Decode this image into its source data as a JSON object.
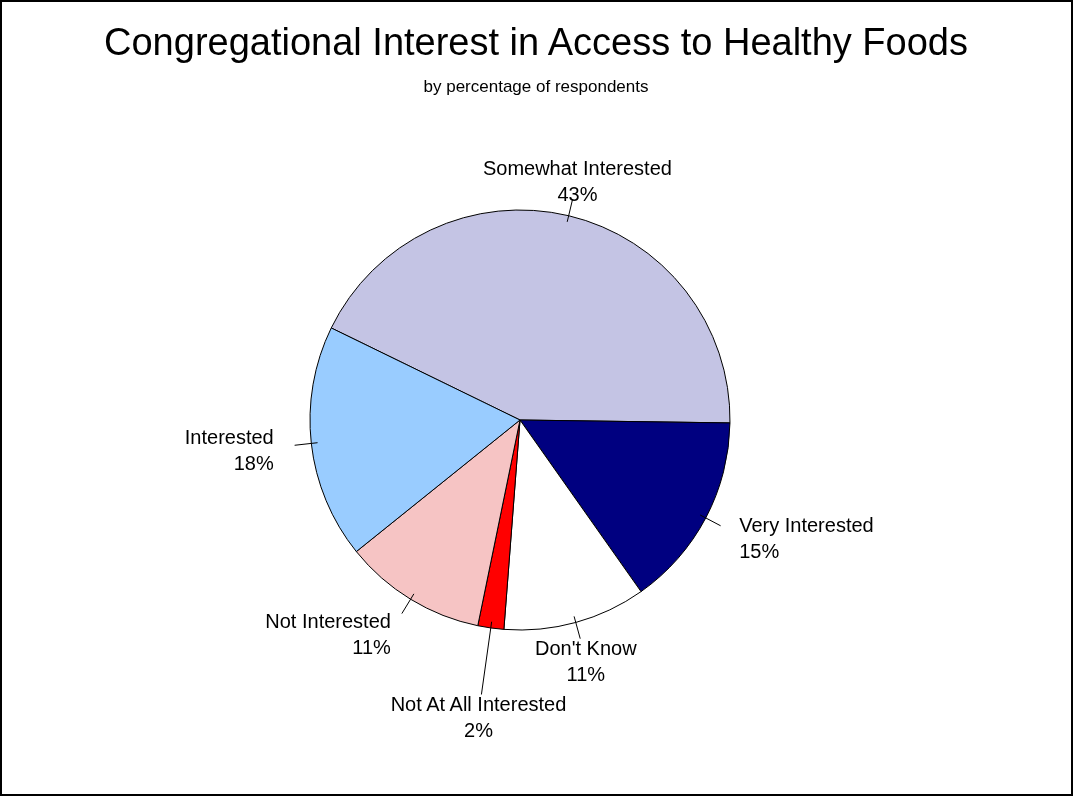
{
  "chart_data": {
    "type": "pie",
    "title": "Congregational Interest in Access to Healthy Foods",
    "subtitle": "by percentage of respondents",
    "categories": [
      "Somewhat Interested",
      "Very Interested",
      "Don't Know",
      "Not At All Interested",
      "Not Interested",
      "Interested"
    ],
    "values": [
      43,
      15,
      11,
      2,
      11,
      18
    ],
    "colors": [
      "#c4c4e4",
      "#000080",
      "#ffffff",
      "#ff0000",
      "#f6c4c4",
      "#99ccff"
    ],
    "value_labels": [
      "43%",
      "15%",
      "11%",
      "2%",
      "11%",
      "18%"
    ]
  }
}
